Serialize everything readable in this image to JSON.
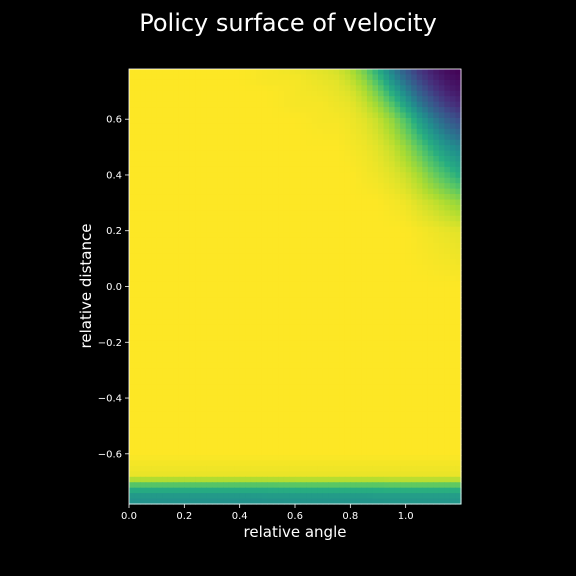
{
  "chart_data": {
    "type": "heatmap",
    "title": "Policy surface of velocity",
    "xlabel": "relative angle",
    "ylabel": "relative distance",
    "xlim": [
      0.0,
      1.2
    ],
    "ylim": [
      -0.78,
      0.78
    ],
    "x_ticks": [
      0.0,
      0.2,
      0.4,
      0.6,
      0.8,
      1.0
    ],
    "x_tick_labels": [
      "0.0",
      "0.2",
      "0.4",
      "0.6",
      "0.8",
      "1.0"
    ],
    "y_ticks": [
      -0.6,
      -0.4,
      -0.2,
      0.0,
      0.2,
      0.4,
      0.6
    ],
    "y_tick_labels": [
      "−0.6",
      "−0.4",
      "−0.2",
      "0.0",
      "0.2",
      "0.4",
      "0.6"
    ],
    "colormap": "viridis",
    "grid": false,
    "legend": "none",
    "value_range": [
      0,
      1
    ],
    "x_cells": [
      0.0,
      0.1,
      0.2,
      0.3,
      0.4,
      0.5,
      0.6,
      0.7,
      0.75,
      0.8,
      0.85,
      0.9,
      0.95,
      1.0,
      1.05,
      1.1,
      1.15,
      1.2
    ],
    "y_cells": [
      -0.78,
      -0.75,
      -0.72,
      -0.7,
      -0.68,
      -0.6,
      -0.4,
      -0.2,
      0.0,
      0.2,
      0.3,
      0.4,
      0.5,
      0.6,
      0.65,
      0.7,
      0.74,
      0.78
    ],
    "values": [
      [
        0.5,
        0.5,
        0.5,
        0.5,
        0.5,
        0.5,
        0.51,
        0.51,
        0.51,
        0.51,
        0.51,
        0.51,
        0.52,
        0.52,
        0.52,
        0.52,
        0.52,
        0.52
      ],
      [
        0.54,
        0.54,
        0.54,
        0.54,
        0.54,
        0.55,
        0.55,
        0.55,
        0.55,
        0.55,
        0.55,
        0.56,
        0.56,
        0.56,
        0.56,
        0.56,
        0.56,
        0.56
      ],
      [
        0.66,
        0.66,
        0.66,
        0.66,
        0.66,
        0.66,
        0.67,
        0.67,
        0.67,
        0.67,
        0.67,
        0.67,
        0.68,
        0.68,
        0.68,
        0.68,
        0.68,
        0.68
      ],
      [
        0.84,
        0.84,
        0.84,
        0.84,
        0.84,
        0.84,
        0.85,
        0.85,
        0.85,
        0.85,
        0.85,
        0.85,
        0.86,
        0.86,
        0.86,
        0.86,
        0.86,
        0.86
      ],
      [
        0.97,
        0.97,
        0.97,
        0.97,
        0.97,
        0.97,
        0.97,
        0.97,
        0.97,
        0.97,
        0.97,
        0.97,
        0.97,
        0.97,
        0.97,
        0.97,
        0.97,
        0.97
      ],
      [
        1.0,
        1.0,
        1.0,
        1.0,
        1.0,
        1.0,
        1.0,
        1.0,
        1.0,
        1.0,
        1.0,
        1.0,
        1.0,
        1.0,
        1.0,
        1.0,
        1.0,
        1.0
      ],
      [
        1.0,
        1.0,
        1.0,
        1.0,
        1.0,
        1.0,
        1.0,
        1.0,
        1.0,
        1.0,
        1.0,
        1.0,
        1.0,
        1.0,
        1.0,
        1.0,
        1.0,
        1.0
      ],
      [
        1.0,
        1.0,
        1.0,
        1.0,
        1.0,
        1.0,
        1.0,
        1.0,
        1.0,
        1.0,
        1.0,
        1.0,
        1.0,
        1.0,
        1.0,
        1.0,
        1.0,
        1.0
      ],
      [
        1.0,
        1.0,
        1.0,
        1.0,
        1.0,
        1.0,
        1.0,
        1.0,
        1.0,
        1.0,
        1.0,
        1.0,
        1.0,
        1.0,
        1.0,
        1.0,
        1.0,
        1.0
      ],
      [
        1.0,
        1.0,
        1.0,
        1.0,
        1.0,
        1.0,
        1.0,
        1.0,
        1.0,
        1.0,
        1.0,
        1.0,
        1.0,
        1.0,
        0.99,
        0.98,
        0.97,
        0.96
      ],
      [
        1.0,
        1.0,
        1.0,
        1.0,
        1.0,
        1.0,
        1.0,
        1.0,
        1.0,
        1.0,
        1.0,
        1.0,
        0.99,
        0.98,
        0.95,
        0.92,
        0.88,
        0.84
      ],
      [
        1.0,
        1.0,
        1.0,
        1.0,
        1.0,
        1.0,
        1.0,
        1.0,
        1.0,
        1.0,
        0.99,
        0.98,
        0.96,
        0.93,
        0.87,
        0.78,
        0.7,
        0.62
      ],
      [
        1.0,
        1.0,
        1.0,
        1.0,
        1.0,
        1.0,
        1.0,
        1.0,
        1.0,
        0.99,
        0.98,
        0.96,
        0.92,
        0.85,
        0.74,
        0.62,
        0.52,
        0.45
      ],
      [
        1.0,
        1.0,
        1.0,
        1.0,
        1.0,
        1.0,
        1.0,
        0.99,
        0.99,
        0.98,
        0.96,
        0.92,
        0.84,
        0.72,
        0.56,
        0.42,
        0.3,
        0.22
      ],
      [
        1.0,
        1.0,
        1.0,
        1.0,
        1.0,
        1.0,
        0.99,
        0.99,
        0.98,
        0.97,
        0.93,
        0.86,
        0.74,
        0.58,
        0.42,
        0.28,
        0.18,
        0.12
      ],
      [
        1.0,
        1.0,
        1.0,
        1.0,
        1.0,
        1.0,
        0.99,
        0.98,
        0.97,
        0.95,
        0.89,
        0.78,
        0.62,
        0.46,
        0.3,
        0.18,
        0.1,
        0.06
      ],
      [
        1.0,
        1.0,
        1.0,
        1.0,
        1.0,
        0.99,
        0.99,
        0.97,
        0.96,
        0.92,
        0.84,
        0.7,
        0.52,
        0.36,
        0.22,
        0.12,
        0.06,
        0.03
      ],
      [
        1.0,
        1.0,
        1.0,
        1.0,
        1.0,
        0.99,
        0.98,
        0.96,
        0.94,
        0.89,
        0.78,
        0.62,
        0.44,
        0.28,
        0.16,
        0.08,
        0.03,
        0.0
      ]
    ]
  }
}
